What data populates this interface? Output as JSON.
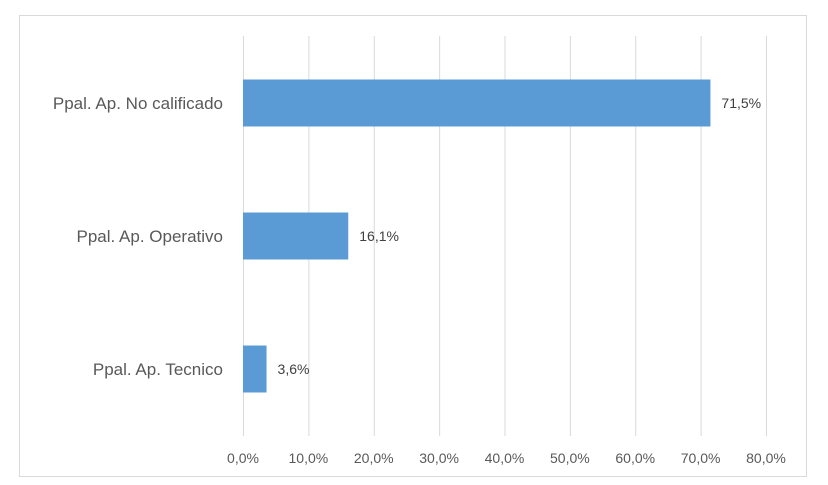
{
  "chart_data": {
    "type": "bar",
    "orientation": "horizontal",
    "categories": [
      "Ppal. Ap. No calificado",
      "Ppal. Ap. Operativo",
      "Ppal. Ap. Tecnico"
    ],
    "values": [
      71.5,
      16.1,
      3.6
    ],
    "data_labels": [
      "71,5%",
      "16,1%",
      "3,6%"
    ],
    "x_ticks": [
      0,
      10,
      20,
      30,
      40,
      50,
      60,
      70,
      80
    ],
    "x_tick_labels": [
      "0,0%",
      "10,0%",
      "20,0%",
      "30,0%",
      "40,0%",
      "50,0%",
      "60,0%",
      "70,0%",
      "80,0%"
    ],
    "xlim": [
      0,
      80
    ],
    "grid": "vertical",
    "legend": "none",
    "title": "",
    "xlabel": "",
    "ylabel": "",
    "bar_color": "#5b9bd5",
    "grid_color": "#d9d9d9"
  }
}
